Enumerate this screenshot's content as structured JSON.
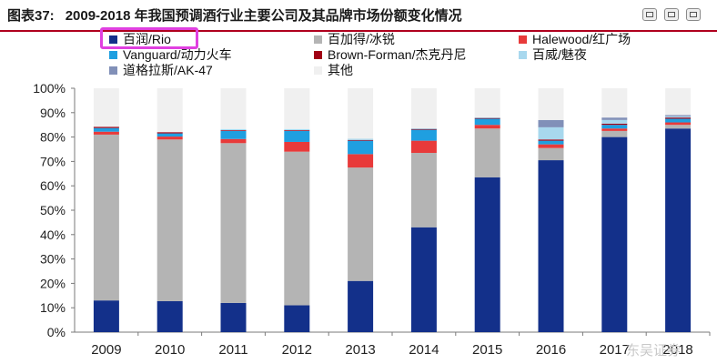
{
  "header": {
    "label": "图表37:",
    "title": "2009-2018 年我国预调酒行业主要公司及其品牌市场份额变化情况"
  },
  "toolbar": [
    {
      "name": "copy-icon"
    },
    {
      "name": "export-icon"
    },
    {
      "name": "delete-icon"
    }
  ],
  "watermark": "东吴证券",
  "chart_data": {
    "type": "bar",
    "stacked": true,
    "categories": [
      "2009",
      "2010",
      "2011",
      "2012",
      "2013",
      "2014",
      "2015",
      "2016",
      "2017",
      "2018"
    ],
    "yticks": [
      "0%",
      "10%",
      "20%",
      "30%",
      "40%",
      "50%",
      "60%",
      "70%",
      "80%",
      "90%",
      "100%"
    ],
    "ylim": [
      0,
      100
    ],
    "legend": [
      "百润/Rio",
      "百加得/冰锐",
      "Halewood/红广场",
      "Vanguard/动力火车",
      "Brown-Forman/杰克丹尼",
      "百威/魅夜",
      "道格拉斯/AK-47",
      "其他"
    ],
    "series": [
      {
        "name": "百润/Rio",
        "color": "#13308a",
        "values": [
          13,
          12.7,
          12,
          11,
          21,
          43,
          63.5,
          70.5,
          80,
          83.5
        ]
      },
      {
        "name": "百加得/冰锐",
        "color": "#b4b4b4",
        "values": [
          68,
          66.3,
          65.5,
          63,
          46.5,
          30.5,
          20,
          5,
          2.5,
          1.5
        ]
      },
      {
        "name": "Halewood/红广场",
        "color": "#e83a3a",
        "values": [
          1.2,
          1.2,
          1.7,
          4,
          5.5,
          5,
          1.5,
          1.5,
          1,
          1
        ]
      },
      {
        "name": "Vanguard/动力火车",
        "color": "#1f9fe0",
        "values": [
          1.5,
          1.3,
          3.3,
          4.5,
          5.5,
          4.5,
          2.5,
          1.5,
          1.5,
          1.5
        ]
      },
      {
        "name": "Brown-Forman/杰克丹尼",
        "color": "#a00014",
        "values": [
          0.5,
          0.5,
          0.3,
          0.3,
          0.3,
          0.3,
          0.3,
          0.5,
          0.5,
          0.5
        ]
      },
      {
        "name": "百威/魅夜",
        "color": "#a8d8ee",
        "values": [
          0,
          0,
          0.5,
          0.5,
          0.5,
          0.3,
          0.3,
          5,
          1.5,
          0.5
        ]
      },
      {
        "name": "道格拉斯/AK-47",
        "color": "#8190b8",
        "values": [
          0,
          0,
          0,
          0,
          0,
          0,
          0,
          3,
          1,
          0.5
        ]
      },
      {
        "name": "其他",
        "color": "#f0f0f0",
        "values": [
          15.8,
          18,
          16.7,
          16.7,
          20.7,
          16.4,
          11.9,
          13,
          12,
          11
        ]
      }
    ],
    "grid": false,
    "legend_position": "top"
  }
}
